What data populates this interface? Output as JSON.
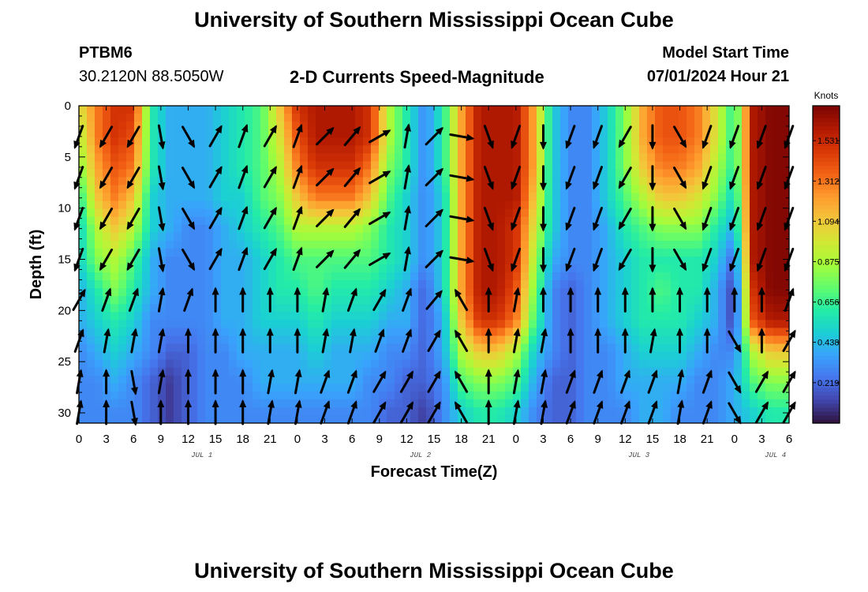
{
  "header": {
    "title": "University of Southern Mississippi Ocean Cube",
    "station": "PTBM6",
    "coordinates": "30.2120N  88.5050W",
    "subtitle": "2-D Currents Speed-Magnitude",
    "model_start_label": "Model Start Time",
    "model_start_value": "07/01/2024 Hour 21"
  },
  "footer": {
    "title": "University of Southern Mississippi Ocean Cube"
  },
  "chart_data": {
    "type": "heatmap",
    "title": "2-D Currents Speed-Magnitude",
    "xlabel": "Forecast Time(Z)",
    "ylabel": "Depth (ft)",
    "x_tick_labels": [
      "0",
      "3",
      "6",
      "9",
      "12",
      "15",
      "18",
      "21",
      "0",
      "3",
      "6",
      "9",
      "12",
      "15",
      "18",
      "21",
      "0",
      "3",
      "6",
      "9",
      "12",
      "15",
      "18",
      "21",
      "0",
      "3",
      "6"
    ],
    "date_labels": [
      {
        "label": "JUL 1",
        "tick": 4.5
      },
      {
        "label": "JUL 2",
        "tick": 12.5
      },
      {
        "label": "JUL 3",
        "tick": 20.5
      },
      {
        "label": "JUL 4",
        "tick": 25.5
      }
    ],
    "forecast_hours_range": [
      0,
      78
    ],
    "ylim": [
      0,
      31
    ],
    "y_ticks": [
      0,
      5,
      10,
      15,
      20,
      25,
      30
    ],
    "y_inverted": true,
    "colorbar": {
      "units": "Knots",
      "ticks": [
        0.219,
        0.438,
        0.656,
        0.875,
        1.094,
        1.312,
        1.531
      ],
      "range": [
        0,
        1.72
      ],
      "colors": [
        "#30123b",
        "#4145ab",
        "#4675ed",
        "#39a2fc",
        "#1bcfd4",
        "#24eca6",
        "#61fc6c",
        "#a4fc3b",
        "#d1e834",
        "#f3c63a",
        "#fe9b2d",
        "#f36315",
        "#d93806",
        "#b11901",
        "#7a0403"
      ]
    },
    "speed_grid": {
      "times_hr": [
        0,
        2,
        4,
        6,
        8,
        10,
        12,
        14,
        16,
        18,
        20,
        22,
        24,
        26,
        28,
        30,
        32,
        34,
        36,
        38,
        40,
        42,
        44,
        46,
        48,
        50,
        52,
        54,
        56,
        58,
        60,
        62,
        64,
        66,
        68,
        70,
        72,
        74,
        76,
        78
      ],
      "depths_ft": [
        0,
        3,
        6,
        9,
        12,
        15,
        18,
        21,
        24,
        27,
        30
      ],
      "rows": [
        [
          1.0,
          1.3,
          1.5,
          1.5,
          0.6,
          0.4,
          0.4,
          0.4,
          0.5,
          0.6,
          0.7,
          1.1,
          1.5,
          1.6,
          1.6,
          1.6,
          1.5,
          0.9,
          0.6,
          0.3,
          0.6,
          1.2,
          1.6,
          1.6,
          1.6,
          1.2,
          0.5,
          0.3,
          0.3,
          0.5,
          0.8,
          1.2,
          1.4,
          1.4,
          1.3,
          1.0,
          0.6,
          1.6,
          1.7,
          1.7
        ],
        [
          0.9,
          1.3,
          1.5,
          1.4,
          0.6,
          0.4,
          0.4,
          0.4,
          0.5,
          0.6,
          0.7,
          1.0,
          1.4,
          1.6,
          1.6,
          1.6,
          1.5,
          0.9,
          0.6,
          0.3,
          0.6,
          1.2,
          1.6,
          1.6,
          1.6,
          1.2,
          0.5,
          0.3,
          0.3,
          0.5,
          0.8,
          1.2,
          1.4,
          1.4,
          1.3,
          1.0,
          0.6,
          1.6,
          1.7,
          1.7
        ],
        [
          0.8,
          1.2,
          1.4,
          1.3,
          0.6,
          0.4,
          0.4,
          0.4,
          0.5,
          0.6,
          0.7,
          0.9,
          1.3,
          1.5,
          1.5,
          1.5,
          1.3,
          0.8,
          0.6,
          0.3,
          0.6,
          1.2,
          1.6,
          1.6,
          1.6,
          1.2,
          0.5,
          0.3,
          0.3,
          0.5,
          0.8,
          1.1,
          1.3,
          1.3,
          1.2,
          0.9,
          0.6,
          1.6,
          1.7,
          1.7
        ],
        [
          0.6,
          1.1,
          1.3,
          1.1,
          0.5,
          0.4,
          0.4,
          0.4,
          0.5,
          0.5,
          0.7,
          0.8,
          1.1,
          1.3,
          1.3,
          1.3,
          1.1,
          0.7,
          0.5,
          0.3,
          0.5,
          1.2,
          1.6,
          1.6,
          1.6,
          1.1,
          0.5,
          0.3,
          0.3,
          0.5,
          0.7,
          0.9,
          1.1,
          1.1,
          1.0,
          0.8,
          0.5,
          1.6,
          1.7,
          1.7
        ],
        [
          0.5,
          0.9,
          1.1,
          0.9,
          0.5,
          0.4,
          0.3,
          0.3,
          0.4,
          0.5,
          0.6,
          0.7,
          0.9,
          0.9,
          0.9,
          0.9,
          0.8,
          0.6,
          0.5,
          0.3,
          0.5,
          1.2,
          1.6,
          1.6,
          1.5,
          1.0,
          0.5,
          0.3,
          0.3,
          0.4,
          0.6,
          0.7,
          0.8,
          0.8,
          0.8,
          0.6,
          0.4,
          1.6,
          1.7,
          1.7
        ],
        [
          0.5,
          0.8,
          0.9,
          0.7,
          0.4,
          0.3,
          0.3,
          0.3,
          0.4,
          0.4,
          0.5,
          0.6,
          0.7,
          0.7,
          0.7,
          0.7,
          0.7,
          0.6,
          0.5,
          0.3,
          0.5,
          1.2,
          1.6,
          1.6,
          1.5,
          0.9,
          0.4,
          0.3,
          0.3,
          0.4,
          0.5,
          0.6,
          0.6,
          0.6,
          0.6,
          0.5,
          0.2,
          1.6,
          1.7,
          1.7
        ],
        [
          0.4,
          0.6,
          0.8,
          0.6,
          0.4,
          0.3,
          0.3,
          0.3,
          0.4,
          0.4,
          0.5,
          0.6,
          0.6,
          0.7,
          0.6,
          0.6,
          0.6,
          0.5,
          0.4,
          0.2,
          0.5,
          1.2,
          1.6,
          1.6,
          1.4,
          0.8,
          0.3,
          0.2,
          0.3,
          0.4,
          0.5,
          0.6,
          0.7,
          0.6,
          0.6,
          0.4,
          0.1,
          1.5,
          1.7,
          1.7
        ],
        [
          0.4,
          0.5,
          0.6,
          0.5,
          0.3,
          0.3,
          0.3,
          0.3,
          0.4,
          0.4,
          0.5,
          0.5,
          0.5,
          0.6,
          0.5,
          0.5,
          0.5,
          0.4,
          0.4,
          0.2,
          0.4,
          1.1,
          1.5,
          1.5,
          1.3,
          0.7,
          0.3,
          0.2,
          0.3,
          0.4,
          0.5,
          0.6,
          0.6,
          0.6,
          0.5,
          0.4,
          0.1,
          1.4,
          1.6,
          1.6
        ],
        [
          0.3,
          0.4,
          0.5,
          0.4,
          0.3,
          0.2,
          0.2,
          0.3,
          0.3,
          0.4,
          0.4,
          0.4,
          0.4,
          0.5,
          0.4,
          0.4,
          0.4,
          0.3,
          0.3,
          0.2,
          0.4,
          0.9,
          1.1,
          1.1,
          0.9,
          0.5,
          0.3,
          0.2,
          0.3,
          0.3,
          0.4,
          0.5,
          0.5,
          0.5,
          0.4,
          0.3,
          0.3,
          0.9,
          1.1,
          1.1
        ],
        [
          0.3,
          0.3,
          0.4,
          0.3,
          0.2,
          0.1,
          0.2,
          0.3,
          0.3,
          0.3,
          0.4,
          0.4,
          0.4,
          0.4,
          0.4,
          0.4,
          0.3,
          0.3,
          0.2,
          0.2,
          0.3,
          0.7,
          0.8,
          0.8,
          0.7,
          0.4,
          0.2,
          0.2,
          0.3,
          0.3,
          0.4,
          0.4,
          0.4,
          0.4,
          0.3,
          0.3,
          0.4,
          0.7,
          0.8,
          0.8
        ],
        [
          0.3,
          0.3,
          0.3,
          0.3,
          0.2,
          0.1,
          0.2,
          0.3,
          0.3,
          0.3,
          0.3,
          0.3,
          0.3,
          0.3,
          0.3,
          0.3,
          0.3,
          0.2,
          0.2,
          0.1,
          0.3,
          0.5,
          0.6,
          0.6,
          0.5,
          0.3,
          0.2,
          0.2,
          0.3,
          0.3,
          0.3,
          0.4,
          0.4,
          0.3,
          0.3,
          0.3,
          0.4,
          0.5,
          0.6,
          0.6
        ]
      ]
    },
    "vectors": {
      "times_hr": [
        0,
        3,
        6,
        9,
        12,
        15,
        18,
        21,
        24,
        27,
        30,
        33,
        36,
        39,
        42,
        45,
        48,
        51,
        54,
        57,
        60,
        63,
        66,
        69,
        72,
        75,
        78
      ],
      "depths_ft": [
        3,
        7,
        11,
        15,
        19,
        23,
        27,
        30
      ],
      "direction_deg": [
        [
          200,
          210,
          210,
          170,
          150,
          30,
          20,
          30,
          20,
          45,
          40,
          60,
          10,
          45,
          100,
          160,
          200,
          180,
          200,
          200,
          210,
          180,
          150,
          200,
          200,
          200,
          200
        ],
        [
          200,
          210,
          210,
          170,
          150,
          30,
          20,
          30,
          20,
          45,
          40,
          60,
          10,
          45,
          100,
          160,
          200,
          180,
          200,
          200,
          210,
          180,
          150,
          200,
          200,
          200,
          200
        ],
        [
          200,
          210,
          210,
          170,
          150,
          30,
          20,
          30,
          20,
          45,
          40,
          60,
          10,
          45,
          100,
          160,
          200,
          180,
          200,
          200,
          210,
          180,
          150,
          200,
          200,
          200,
          200
        ],
        [
          200,
          210,
          210,
          170,
          150,
          30,
          20,
          30,
          20,
          45,
          40,
          60,
          10,
          45,
          100,
          160,
          200,
          180,
          200,
          200,
          210,
          180,
          150,
          200,
          200,
          200,
          200
        ],
        [
          30,
          20,
          20,
          10,
          20,
          0,
          0,
          0,
          0,
          10,
          20,
          30,
          20,
          40,
          330,
          0,
          10,
          0,
          0,
          0,
          0,
          0,
          0,
          0,
          0,
          0,
          20
        ],
        [
          20,
          10,
          10,
          10,
          0,
          0,
          0,
          0,
          0,
          10,
          10,
          20,
          20,
          30,
          330,
          0,
          10,
          10,
          0,
          0,
          0,
          10,
          0,
          0,
          150,
          0,
          30
        ],
        [
          10,
          0,
          170,
          10,
          0,
          0,
          0,
          10,
          10,
          20,
          20,
          30,
          30,
          30,
          330,
          0,
          10,
          10,
          20,
          20,
          20,
          20,
          10,
          20,
          150,
          30,
          30
        ],
        [
          10,
          0,
          170,
          0,
          0,
          0,
          0,
          10,
          10,
          20,
          20,
          30,
          30,
          30,
          330,
          0,
          10,
          10,
          20,
          20,
          20,
          20,
          10,
          20,
          150,
          30,
          30
        ]
      ]
    }
  }
}
